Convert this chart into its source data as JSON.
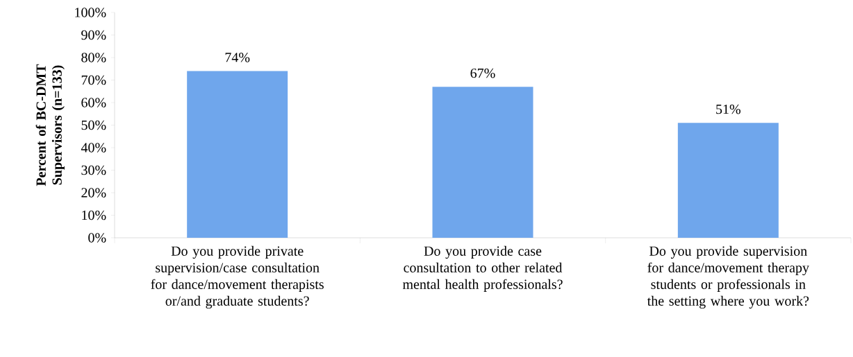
{
  "chart_data": {
    "type": "bar",
    "ylabel": "Percent of BC-DMT Supervisors (n=133)",
    "categories": [
      "Do you provide private supervision/case consultation for dance/movement therapists or/and graduate students?",
      "Do you provide case consultation to other related mental health professionals?",
      "Do you provide supervision for dance/movement therapy students or professionals in the setting where you work?"
    ],
    "values": [
      74,
      67,
      51
    ],
    "value_labels": [
      "74%",
      "67%",
      "51%"
    ],
    "color": "#6fa6ec",
    "ylim": [
      0,
      100
    ],
    "yticks": [
      {
        "value": 0,
        "label": "0%"
      },
      {
        "value": 10,
        "label": "10%"
      },
      {
        "value": 20,
        "label": "20%"
      },
      {
        "value": 30,
        "label": "30%"
      },
      {
        "value": 40,
        "label": "40%"
      },
      {
        "value": 50,
        "label": "50%"
      },
      {
        "value": 60,
        "label": "60%"
      },
      {
        "value": 70,
        "label": "70%"
      },
      {
        "value": 80,
        "label": "80%"
      },
      {
        "value": 90,
        "label": "90%"
      },
      {
        "value": 100,
        "label": "100%"
      }
    ],
    "grid": false
  }
}
